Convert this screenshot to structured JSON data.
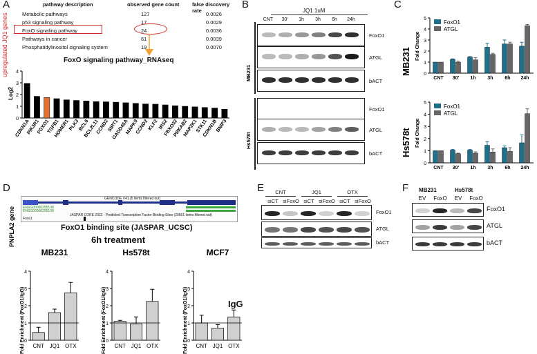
{
  "panel_labels": {
    "A": "A",
    "B": "B",
    "C": "C",
    "D": "D",
    "E": "E",
    "F": "F"
  },
  "panelA": {
    "side_label": "upregulated JQ1 genes",
    "table_headers": [
      "pathway description",
      "observed gene count",
      "false discovery rate"
    ],
    "table_rows": [
      [
        "Metabolic pathways",
        "127",
        "0.0026"
      ],
      [
        "p53 signaling pathway",
        "17",
        "0.0029"
      ],
      [
        "FoxO signaling pathway",
        "24",
        "0.0036"
      ],
      [
        "Pathways in cancer",
        "61",
        "0.0039"
      ],
      [
        "Phosphatidylinositol signaling system",
        "19",
        "0.0070"
      ]
    ],
    "highlight_color": "#d62728",
    "arrow_color": "#f5a030"
  },
  "panelB": {
    "treatment": "JQ1 1uM",
    "lanes": [
      "CNT",
      "30'",
      "1h",
      "3h",
      "6h",
      "24h"
    ],
    "cell_lines": [
      "MB231",
      "Hs578t"
    ],
    "blot_labels": [
      "FoxO1",
      "ATGL",
      "bACT",
      "FoxO1",
      "ATGL",
      "bACT"
    ]
  },
  "panelD": {
    "gene_label": "PNPLA2 gene",
    "track_text_1": "GENCODE V41 (5 items filtered out)",
    "track_text_2": "JASPAR CORE 2022 - Predicted Transcription Factor Binding Sites (20661 items filtered out)",
    "track_names": [
      "PNPLA2",
      "ENSG00000255108",
      "ENSG00000255108",
      "Foxo1"
    ],
    "binding_caption": "FoxO1 binding site (JASPAR_UCSC)",
    "treatment_title": "6h treatment",
    "igg_label": "IgG"
  },
  "panelE": {
    "groups": [
      "CNT",
      "JQ1",
      "OTX"
    ],
    "lanes": [
      "siCT",
      "siFoxO",
      "siCT",
      "siFoxO",
      "siCT",
      "siFoxO"
    ],
    "blot_labels": [
      "FoxO1",
      "ATGL",
      "bACT"
    ]
  },
  "panelF": {
    "cell_lines": [
      "MB231",
      "Hs578t"
    ],
    "lanes": [
      "EV",
      "FoxO",
      "EV",
      "FoxO"
    ],
    "blot_labels": [
      "FoxO1",
      "ATGL",
      "bACT"
    ]
  },
  "chart_data": [
    {
      "id": "A-bar",
      "type": "bar",
      "title": "FoxO signaling pathway_RNAseq",
      "xlabel": "",
      "ylabel": "Log2",
      "ylim": [
        0,
        4
      ],
      "yticks": [
        0,
        1,
        2,
        3,
        4
      ],
      "categories": [
        "CDKN1A",
        "PIK3R1",
        "FOXO1",
        "TGFB1",
        "HOMER1",
        "PLK3",
        "BCL6",
        "BCL2L11",
        "CCND2",
        "SIRT1",
        "GADD45A",
        "MAPK9",
        "CCND2",
        "KLF2",
        "IRS2",
        "FBXO32",
        "PRKAB2",
        "MAP2K1",
        "STK11",
        "CDKN1B",
        "BNIP3"
      ],
      "values": [
        2.95,
        1.85,
        1.75,
        1.65,
        1.55,
        1.5,
        1.45,
        1.4,
        1.38,
        1.35,
        1.3,
        1.25,
        1.2,
        1.18,
        1.12,
        1.05,
        1.0,
        0.95,
        0.9,
        0.85,
        0.75
      ],
      "colors": {
        "default": "#000000",
        "highlight": "#e07030"
      },
      "highlight_index": 2
    },
    {
      "id": "C-MB231",
      "type": "bar",
      "title": "MB231",
      "xlabel": "",
      "ylabel": "Fold Change",
      "ylim": [
        0,
        5
      ],
      "yticks": [
        0,
        1,
        2,
        3,
        4,
        5
      ],
      "categories": [
        "CNT",
        "30'",
        "1h",
        "3h",
        "6h",
        "24h"
      ],
      "series": [
        {
          "name": "FoxO1",
          "values": [
            1.0,
            1.25,
            1.45,
            2.35,
            2.65,
            2.45
          ],
          "err": [
            0.0,
            0.05,
            0.05,
            0.35,
            0.35,
            0.35
          ],
          "color": "#1f6f8b"
        },
        {
          "name": "ATGL",
          "values": [
            1.0,
            1.0,
            1.2,
            1.7,
            2.65,
            4.3
          ],
          "err": [
            0.0,
            0.1,
            0.2,
            0.1,
            0.15,
            0.1
          ],
          "color": "#666666"
        }
      ],
      "legend": "top-left"
    },
    {
      "id": "C-Hs578t",
      "type": "bar",
      "title": "Hs578t",
      "xlabel": "",
      "ylabel": "Fold Change",
      "ylim": [
        0,
        5
      ],
      "yticks": [
        0,
        1,
        2,
        3,
        4,
        5
      ],
      "categories": [
        "CNT",
        "30'",
        "1h",
        "3h",
        "6h",
        "24h"
      ],
      "series": [
        {
          "name": "FoxO1",
          "values": [
            1.0,
            1.05,
            1.05,
            1.45,
            1.25,
            1.65
          ],
          "err": [
            0.0,
            0.05,
            0.05,
            0.3,
            0.15,
            0.65
          ],
          "color": "#1f6f8b"
        },
        {
          "name": "ATGL",
          "values": [
            1.0,
            0.75,
            0.8,
            0.9,
            0.95,
            4.05
          ],
          "err": [
            0.0,
            0.05,
            0.1,
            0.25,
            0.3,
            0.4
          ],
          "color": "#666666"
        }
      ],
      "legend": "top-left"
    },
    {
      "id": "D-MB231",
      "type": "bar",
      "title": "MB231",
      "ylabel": "Fold Enrichment (FoxO1/IgG)",
      "ylim": [
        0,
        4
      ],
      "yticks": [
        0,
        1,
        2,
        3,
        4
      ],
      "categories": [
        "CNT",
        "JQ1",
        "OTX"
      ],
      "values": [
        0.45,
        1.6,
        2.75
      ],
      "err": [
        0.3,
        0.2,
        0.6
      ],
      "baseline": 1
    },
    {
      "id": "D-Hs578t",
      "type": "bar",
      "title": "Hs578t",
      "ylabel": "Fold Enrichment (FoxO1/IgG)",
      "ylim": [
        0,
        4
      ],
      "yticks": [
        0,
        1,
        2,
        3,
        4
      ],
      "categories": [
        "CNT",
        "JQ1",
        "OTX"
      ],
      "values": [
        1.1,
        0.95,
        2.25
      ],
      "err": [
        0.05,
        0.4,
        0.7
      ],
      "baseline": 1
    },
    {
      "id": "D-MCF7",
      "type": "bar",
      "title": "MCF7",
      "ylabel": "Fold Enrichment (FoxO1/IgG)",
      "ylim": [
        0,
        4
      ],
      "yticks": [
        0,
        1,
        2,
        3,
        4
      ],
      "categories": [
        "CNT",
        "JQ1",
        "OTX"
      ],
      "values": [
        1.0,
        0.7,
        1.35
      ],
      "err": [
        0.45,
        0.2,
        0.4
      ],
      "baseline": 1
    }
  ]
}
